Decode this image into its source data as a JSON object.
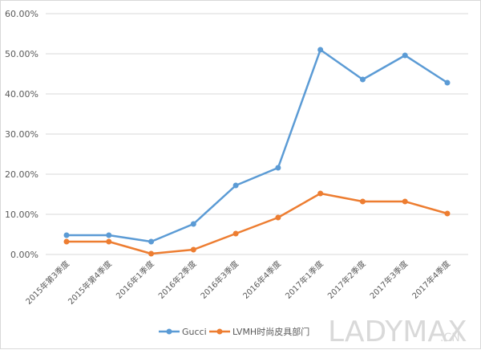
{
  "chart_data": {
    "type": "line",
    "title": "",
    "xlabel": "",
    "ylabel": "",
    "ylim": [
      0,
      60
    ],
    "yticks": [
      "0.00%",
      "10.00%",
      "20.00%",
      "30.00%",
      "40.00%",
      "50.00%",
      "60.00%"
    ],
    "grid": true,
    "legend_position": "bottom",
    "categories": [
      "2015年第3季度",
      "2015年第4季度",
      "2016年1季度",
      "2016年2季度",
      "2016年3季度",
      "2016年4季度",
      "2017年1季度",
      "2017年2季度",
      "2017年3季度",
      "2017年4季度"
    ],
    "series": [
      {
        "name": "Gucci",
        "color": "#5b9bd5",
        "values": [
          4.8,
          4.8,
          3.2,
          7.6,
          17.2,
          21.6,
          51.0,
          43.6,
          49.6,
          42.8
        ]
      },
      {
        "name": "LVMH时尚皮具部门",
        "color": "#ed7d31",
        "values": [
          3.2,
          3.2,
          0.2,
          1.2,
          5.2,
          9.2,
          15.2,
          13.2,
          13.2,
          10.2
        ]
      }
    ]
  },
  "watermark": {
    "main": "LADYMAX",
    "suffix": ".CN"
  }
}
